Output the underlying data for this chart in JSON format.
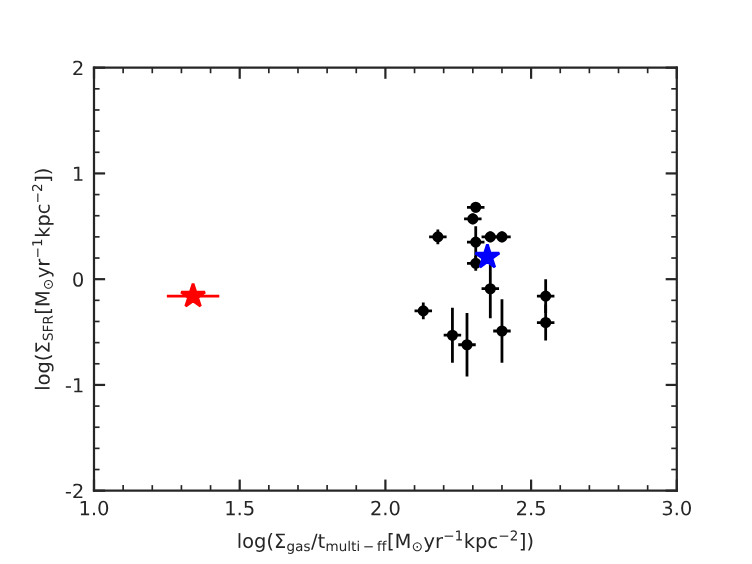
{
  "chart_data": {
    "type": "scatter",
    "xlabel": "log(Σ$_{gas}$/t$_{multi−ff}$[M$_{⊙}$yr$^{−1}$kpc$^{−2}$])",
    "ylabel": "log(Σ$_{SFR}$[M$_{⊙}$yr$^{−1}$kpc$^{−2}$])",
    "xlim": [
      1.0,
      3.0
    ],
    "xticks": [
      {
        "value": 1.0,
        "label": "1.0"
      },
      {
        "value": 1.5,
        "label": "1.5"
      },
      {
        "value": 2.0,
        "label": "2.0"
      },
      {
        "value": 2.5,
        "label": "2.5"
      },
      {
        "value": 3.0,
        "label": "3.0"
      }
    ],
    "ylim": [
      -2,
      2
    ],
    "yticks": [
      -2,
      -1,
      0,
      1,
      2
    ],
    "grid": false,
    "legend": false,
    "series": [
      {
        "color": "#000000",
        "marker": "circle",
        "x": [
          2.13,
          2.18,
          2.23,
          2.28,
          2.31,
          2.3,
          2.31,
          2.31,
          2.36,
          2.4,
          2.36,
          2.4,
          2.55,
          2.55
        ],
        "values": [
          -0.3,
          0.4,
          -0.53,
          -0.62,
          0.68,
          0.57,
          0.35,
          0.15,
          0.4,
          0.4,
          -0.09,
          -0.49,
          -0.16,
          -0.41
        ],
        "xerrors": [
          0.03,
          0.03,
          0.03,
          0.03,
          0.03,
          0.03,
          0.03,
          0.03,
          0.03,
          0.03,
          0.03,
          0.03,
          0.03,
          0.03
        ],
        "errors": [
          0.08,
          0.07,
          0.26,
          0.3,
          0.05,
          0.05,
          0.15,
          0.07,
          0.05,
          0.05,
          0.28,
          0.3,
          0.16,
          0.17
        ]
      },
      {
        "color": "#0000ff",
        "marker": "star",
        "x": [
          2.35
        ],
        "values": [
          0.21
        ]
      },
      {
        "color": "#ff0000",
        "marker": "star",
        "x": [
          1.34
        ],
        "values": [
          -0.16
        ],
        "xerrors": [
          0.09
        ]
      }
    ]
  }
}
